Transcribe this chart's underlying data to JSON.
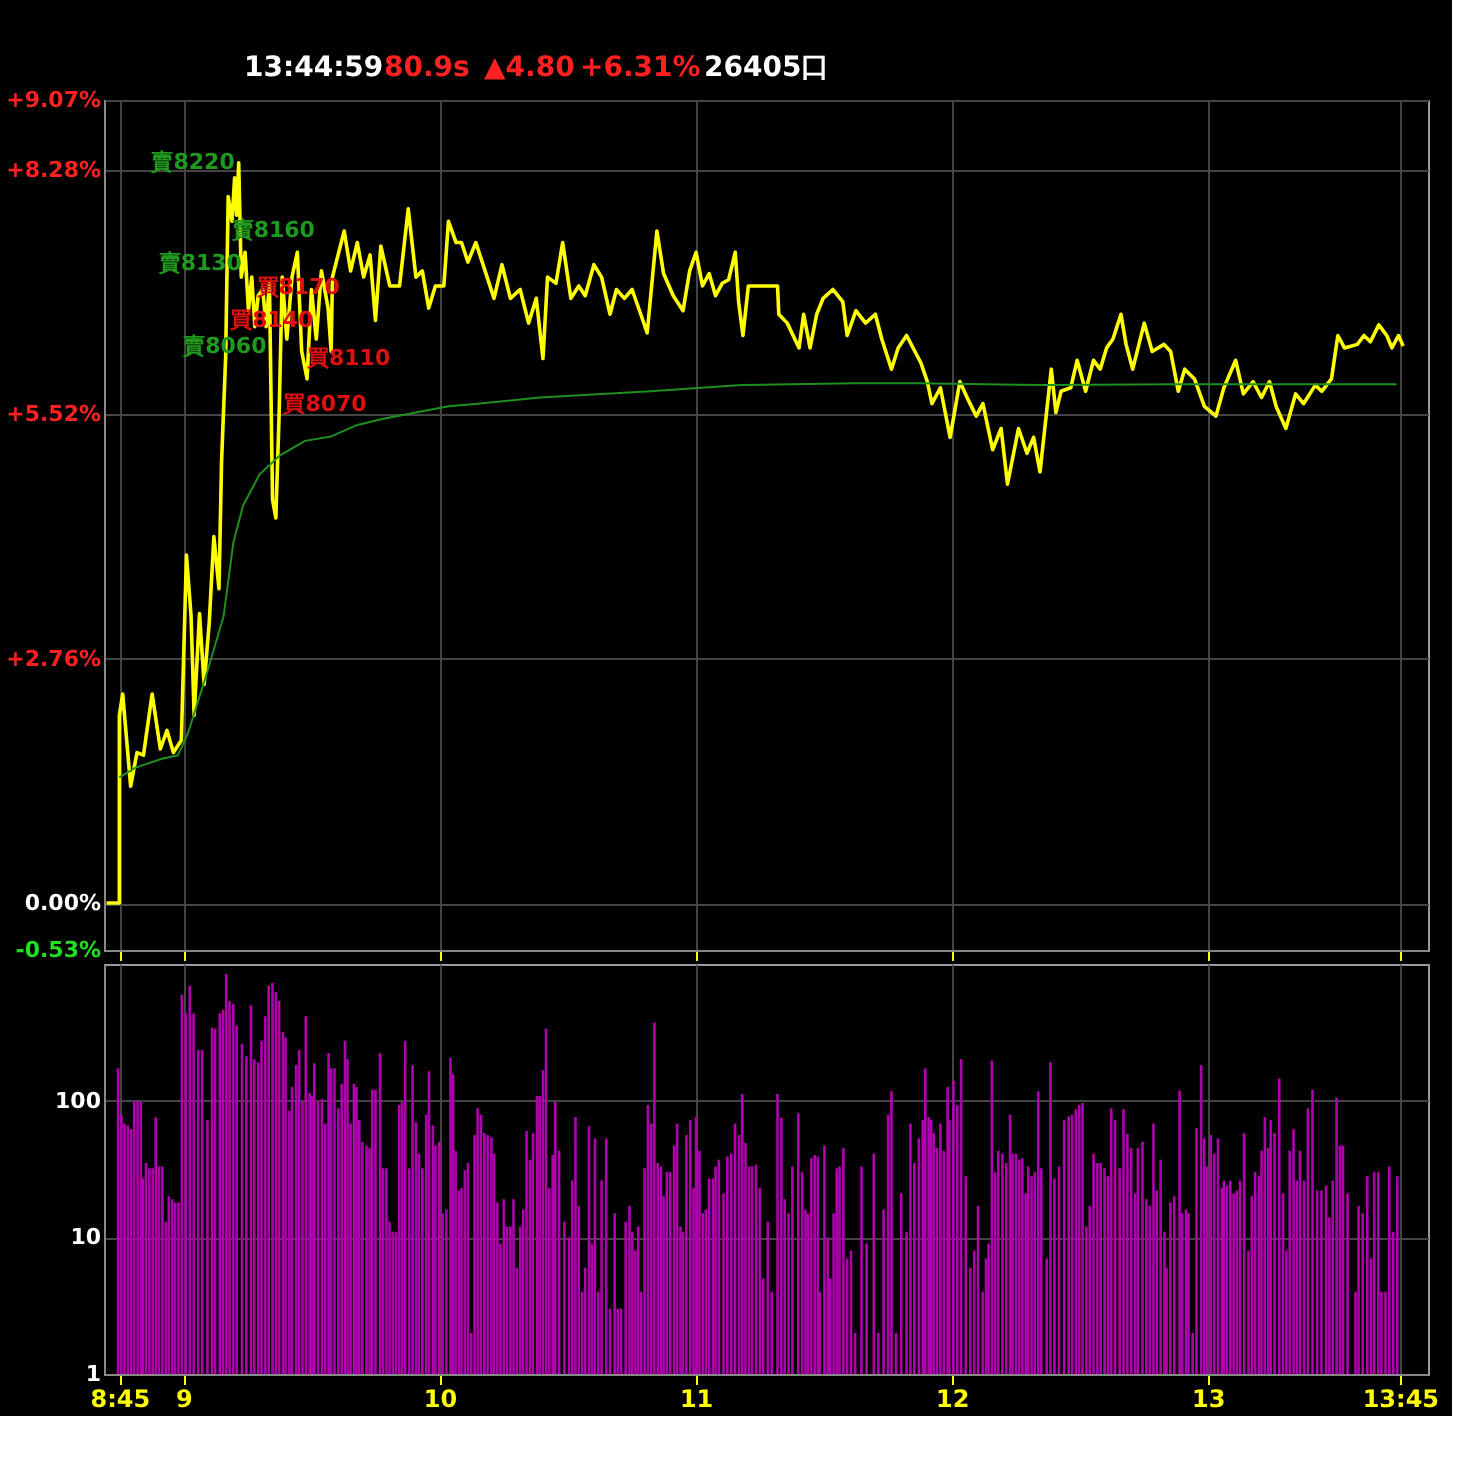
{
  "chart_data": [
    {
      "type": "line",
      "xlim": [
        8.69,
        13.86
      ],
      "xticks": [
        {
          "value": 8.75,
          "label": null
        },
        {
          "value": 9,
          "label": null
        },
        {
          "value": 10,
          "label": null
        },
        {
          "value": 11,
          "label": null
        },
        {
          "value": 12,
          "label": null
        },
        {
          "value": 13,
          "label": null
        },
        {
          "value": 13.75,
          "label": null
        }
      ],
      "ylim": [
        -0.53,
        9.07
      ],
      "yticks": [
        {
          "value": -0.53,
          "label": "-0.53%"
        },
        {
          "value": 0,
          "label": "0.00%"
        },
        {
          "value": 2.76,
          "label": "+2.76%"
        },
        {
          "value": 5.52,
          "label": "+5.52%"
        },
        {
          "value": 8.28,
          "label": "+8.28%"
        },
        {
          "value": 9.07,
          "label": "+9.07%"
        }
      ],
      "grid": true,
      "tick_labels": "y",
      "annotations": [
        "13:44:59",
        "80.9s",
        "▲4.80",
        "+6.31%",
        "26405口",
        {
          "text": "賣8220",
          "x": 9.216,
          "y": 8.36
        },
        {
          "text": "賣8160",
          "x": 9.173,
          "y": 7.59
        },
        {
          "text": "賣8130",
          "x": 9.244,
          "y": 7.22
        },
        {
          "text": "買8170",
          "x": 9.27,
          "y": 6.95
        },
        {
          "text": "買8140",
          "x": 9.167,
          "y": 6.57
        },
        {
          "text": "賣8060",
          "x": 9.34,
          "y": 6.28
        },
        {
          "text": "買8110",
          "x": 9.467,
          "y": 6.15
        },
        {
          "text": "買8070",
          "x": 9.375,
          "y": 5.63
        }
      ],
      "series": [
        {
          "color": "#ffff00",
          "x": [
            8.7,
            8.75,
            8.75,
            8.763,
            8.794,
            8.819,
            8.844,
            8.878,
            8.91,
            8.936,
            8.961,
            8.992,
            9.012,
            9.03,
            9.042,
            9.063,
            9.081,
            9.101,
            9.119,
            9.139,
            9.149,
            9.165,
            9.175,
            9.19,
            9.2,
            9.208,
            9.216,
            9.226,
            9.241,
            9.254,
            9.267,
            9.279,
            9.292,
            9.31,
            9.323,
            9.336,
            9.348,
            9.361,
            9.374,
            9.386,
            9.404,
            9.424,
            9.445,
            9.462,
            9.483,
            9.5,
            9.519,
            9.539,
            9.565,
            9.577,
            9.582,
            9.628,
            9.653,
            9.679,
            9.704,
            9.729,
            9.75,
            9.771,
            9.806,
            9.844,
            9.878,
            9.908,
            9.933,
            9.958,
            9.984,
            10.017,
            10.035,
            10.065,
            10.086,
            10.111,
            10.142,
            10.213,
            10.244,
            10.277,
            10.315,
            10.348,
            10.378,
            10.404,
            10.422,
            10.455,
            10.481,
            10.513,
            10.544,
            10.569,
            10.603,
            10.633,
            10.666,
            10.691,
            10.722,
            10.752,
            10.786,
            10.811,
            10.849,
            10.875,
            10.913,
            10.951,
            10.977,
            11.002,
            11.027,
            11.053,
            11.078,
            11.104,
            11.129,
            11.155,
            11.168,
            11.185,
            11.206,
            11.32,
            11.325,
            11.358,
            11.404,
            11.422,
            11.447,
            11.473,
            11.498,
            11.536,
            11.575,
            11.592,
            11.626,
            11.664,
            11.702,
            11.727,
            11.765,
            11.791,
            11.824,
            11.88,
            11.905,
            11.923,
            11.956,
            11.994,
            12.032,
            12.065,
            12.096,
            12.122,
            12.16,
            12.193,
            12.218,
            12.261,
            12.294,
            12.32,
            12.345,
            12.389,
            12.407,
            12.427,
            12.465,
            12.49,
            12.523,
            12.554,
            12.58,
            12.605,
            12.63,
            12.661,
            12.681,
            12.707,
            12.752,
            12.783,
            12.829,
            12.855,
            12.885,
            12.91,
            12.948,
            12.987,
            13.032,
            13.063,
            13.109,
            13.139,
            13.177,
            13.21,
            13.241,
            13.267,
            13.305,
            13.343,
            13.374,
            13.42,
            13.445,
            13.483,
            13.508,
            13.534,
            13.584,
            13.61,
            13.635,
            13.668,
            13.699,
            13.719,
            13.745,
            13.763
          ],
          "values": [
            0,
            0,
            2.12,
            2.36,
            1.32,
            1.7,
            1.67,
            2.36,
            1.74,
            1.95,
            1.7,
            1.84,
            3.93,
            3.24,
            2.12,
            3.27,
            2.47,
            3.17,
            4.14,
            3.55,
            4.98,
            6.16,
            7.98,
            7.7,
            8.19,
            7.77,
            8.36,
            7.07,
            7.35,
            6.69,
            7.07,
            6.51,
            6.86,
            6.93,
            6.51,
            7.0,
            4.56,
            4.35,
            5.54,
            7.07,
            6.37,
            7.07,
            7.35,
            6.23,
            5.92,
            6.93,
            6.37,
            7.14,
            6.72,
            6.23,
            7.07,
            7.59,
            7.14,
            7.46,
            7.07,
            7.32,
            6.58,
            7.42,
            6.97,
            6.97,
            7.84,
            7.07,
            7.14,
            6.72,
            6.97,
            6.97,
            7.7,
            7.46,
            7.46,
            7.24,
            7.46,
            6.83,
            7.21,
            6.83,
            6.93,
            6.55,
            6.83,
            6.15,
            7.07,
            7.0,
            7.46,
            6.83,
            6.97,
            6.86,
            7.21,
            7.07,
            6.65,
            6.93,
            6.83,
            6.93,
            6.65,
            6.44,
            7.59,
            7.11,
            6.86,
            6.69,
            7.14,
            7.35,
            6.97,
            7.11,
            6.86,
            7.0,
            7.04,
            7.35,
            6.79,
            6.41,
            6.97,
            6.97,
            6.65,
            6.55,
            6.27,
            6.65,
            6.27,
            6.65,
            6.83,
            6.93,
            6.79,
            6.41,
            6.69,
            6.55,
            6.65,
            6.37,
            6.03,
            6.27,
            6.41,
            6.1,
            5.89,
            5.64,
            5.82,
            5.26,
            5.89,
            5.68,
            5.5,
            5.64,
            5.12,
            5.36,
            4.73,
            5.36,
            5.08,
            5.26,
            4.87,
            6.03,
            5.54,
            5.78,
            5.82,
            6.13,
            5.78,
            6.13,
            6.03,
            6.27,
            6.37,
            6.65,
            6.31,
            6.03,
            6.55,
            6.23,
            6.31,
            6.23,
            5.78,
            6.03,
            5.92,
            5.61,
            5.5,
            5.82,
            6.13,
            5.75,
            5.89,
            5.71,
            5.89,
            5.61,
            5.36,
            5.75,
            5.64,
            5.85,
            5.78,
            5.92,
            6.41,
            6.27,
            6.31,
            6.41,
            6.34,
            6.53,
            6.41,
            6.27,
            6.41,
            6.29
          ]
        },
        {
          "color": "#1f8f1f",
          "x": [
            8.75,
            8.813,
            8.916,
            8.979,
            9.017,
            9.093,
            9.157,
            9.195,
            9.233,
            9.297,
            9.374,
            9.475,
            9.577,
            9.679,
            9.781,
            9.908,
            10.035,
            10.149,
            10.391,
            10.824,
            11.18,
            11.613,
            11.867,
            12.376,
            12.885,
            13.737
          ],
          "values": [
            1.42,
            1.53,
            1.63,
            1.67,
            1.91,
            2.61,
            3.24,
            4.07,
            4.49,
            4.84,
            5.05,
            5.22,
            5.27,
            5.4,
            5.47,
            5.54,
            5.61,
            5.64,
            5.71,
            5.78,
            5.85,
            5.87,
            5.87,
            5.85,
            5.86,
            5.86
          ]
        }
      ]
    },
    {
      "type": "bar",
      "color": "#b000b0",
      "log": true,
      "grid": true,
      "ylim": [
        1,
        1000
      ],
      "yticks": [
        1,
        10,
        100
      ],
      "xlim": [
        8.69,
        13.86
      ],
      "xticks": [
        {
          "value": 8.75,
          "label": "8:45"
        },
        {
          "value": 9,
          "label": "9"
        },
        {
          "value": 10,
          "label": "10"
        },
        {
          "value": 11,
          "label": "11"
        },
        {
          "value": 12,
          "label": "12"
        },
        {
          "value": 13,
          "label": "13"
        },
        {
          "value": 13.75,
          "label": "13:45"
        }
      ],
      "x": [
        8.745,
        8.758,
        8.77,
        8.783,
        8.796,
        8.808,
        8.821,
        8.834,
        8.842,
        8.854,
        8.867,
        8.88,
        8.892,
        8.905,
        8.918,
        8.931,
        8.943,
        8.956,
        8.968,
        8.981,
        8.994,
        9.009,
        9.025,
        9.04,
        9.058,
        9.073,
        9.094,
        9.112,
        9.124,
        9.142,
        9.155,
        9.167,
        9.18,
        9.195,
        9.208,
        9.229,
        9.246,
        9.264,
        9.277,
        9.292,
        9.305,
        9.32,
        9.333,
        9.348,
        9.361,
        9.374,
        9.389,
        9.399,
        9.414,
        9.424,
        9.44,
        9.452,
        9.465,
        9.478,
        9.493,
        9.501,
        9.511,
        9.526,
        9.541,
        9.554,
        9.567,
        9.577,
        9.59,
        9.605,
        9.618,
        9.631,
        9.641,
        9.653,
        9.666,
        9.676,
        9.687,
        9.699,
        9.715,
        9.727,
        9.737,
        9.75,
        9.768,
        9.78,
        9.793,
        9.805,
        9.818,
        9.83,
        9.843,
        9.854,
        9.866,
        9.882,
        9.895,
        9.908,
        9.92,
        9.933,
        9.948,
        9.959,
        9.974,
        9.984,
        9.999,
        10.012,
        10.027,
        10.043,
        10.053,
        10.063,
        10.076,
        10.086,
        10.099,
        10.111,
        10.124,
        10.137,
        10.149,
        10.162,
        10.175,
        10.188,
        10.203,
        10.213,
        10.226,
        10.238,
        10.251,
        10.264,
        10.277,
        10.289,
        10.302,
        10.315,
        10.327,
        10.34,
        10.353,
        10.365,
        10.381,
        10.391,
        10.404,
        10.416,
        10.429,
        10.442,
        10.452,
        10.467,
        10.488,
        10.506,
        10.518,
        10.531,
        10.544,
        10.557,
        10.569,
        10.584,
        10.595,
        10.607,
        10.62,
        10.633,
        10.651,
        10.666,
        10.684,
        10.696,
        10.709,
        10.727,
        10.742,
        10.753,
        10.765,
        10.776,
        10.788,
        10.801,
        10.814,
        10.827,
        10.839,
        10.852,
        10.865,
        10.875,
        10.888,
        10.901,
        10.916,
        10.928,
        10.941,
        10.951,
        10.964,
        10.979,
        10.992,
        11.002,
        11.015,
        11.028,
        11.04,
        11.053,
        11.068,
        11.078,
        11.091,
        11.109,
        11.124,
        11.139,
        11.154,
        11.17,
        11.182,
        11.195,
        11.208,
        11.22,
        11.236,
        11.251,
        11.264,
        11.282,
        11.297,
        11.32,
        11.335,
        11.348,
        11.363,
        11.378,
        11.401,
        11.416,
        11.429,
        11.439,
        11.452,
        11.465,
        11.477,
        11.485,
        11.503,
        11.516,
        11.526,
        11.539,
        11.551,
        11.562,
        11.577,
        11.592,
        11.607,
        11.623,
        11.648,
        11.668,
        11.696,
        11.714,
        11.734,
        11.752,
        11.765,
        11.783,
        11.803,
        11.824,
        11.839,
        11.854,
        11.872,
        11.887,
        11.897,
        11.91,
        11.92,
        11.93,
        11.943,
        11.956,
        11.969,
        11.984,
        11.991,
        12.007,
        12.022,
        12.037,
        12.055,
        12.073,
        12.088,
        12.103,
        12.121,
        12.134,
        12.144,
        12.157,
        12.17,
        12.182,
        12.198,
        12.213,
        12.228,
        12.238,
        12.251,
        12.264,
        12.276,
        12.289,
        12.299,
        12.312,
        12.325,
        12.338,
        12.35,
        12.371,
        12.386,
        12.401,
        12.419,
        12.439,
        12.457,
        12.47,
        12.485,
        12.498,
        12.511,
        12.526,
        12.539,
        12.554,
        12.569,
        12.582,
        12.597,
        12.61,
        12.623,
        12.638,
        12.656,
        12.671,
        12.686,
        12.701,
        12.717,
        12.727,
        12.745,
        12.76,
        12.773,
        12.788,
        12.801,
        12.816,
        12.831,
        12.839,
        12.854,
        12.869,
        12.89,
        12.9,
        12.915,
        12.925,
        12.941,
        12.956,
        12.974,
        12.986,
        12.997,
        13.012,
        13.025,
        13.04,
        13.055,
        13.063,
        13.075,
        13.088,
        13.101,
        13.114,
        13.126,
        13.142,
        13.159,
        13.172,
        13.185,
        13.2,
        13.21,
        13.223,
        13.236,
        13.246,
        13.261,
        13.279,
        13.294,
        13.307,
        13.32,
        13.335,
        13.348,
        13.36,
        13.376,
        13.391,
        13.409,
        13.427,
        13.444,
        13.462,
        13.475,
        13.488,
        13.503,
        13.516,
        13.528,
        13.546,
        13.577,
        13.589,
        13.605,
        13.623,
        13.638,
        13.65,
        13.666,
        13.678,
        13.694,
        13.709,
        13.724,
        13.74
      ],
      "values": [
        173,
        79,
        68,
        66,
        62,
        98,
        100,
        98,
        27,
        35,
        32,
        32,
        76,
        33,
        33,
        13,
        20,
        19,
        18,
        18,
        595,
        437,
        695,
        437,
        235,
        235,
        72,
        343,
        336,
        437,
        460,
        850,
        535,
        510,
        355,
        260,
        211,
        500,
        201,
        191,
        274,
        415,
        695,
        730,
        625,
        535,
        319,
        290,
        84,
        126,
        182,
        235,
        98,
        415,
        114,
        108,
        188,
        98,
        103,
        68,
        223,
        173,
        173,
        88,
        133,
        274,
        201,
        68,
        133,
        126,
        72,
        50,
        47,
        45,
        120,
        120,
        223,
        32,
        32,
        13,
        11,
        11,
        93,
        98,
        274,
        32,
        182,
        70,
        41,
        32,
        79,
        164,
        66,
        47,
        50,
        15,
        16,
        206,
        156,
        43,
        22,
        23,
        31,
        35,
        2,
        56,
        88,
        79,
        58,
        56,
        54,
        41,
        18,
        9,
        19,
        12,
        12,
        19,
        6,
        12,
        16,
        60,
        37,
        58,
        108,
        108,
        167,
        336,
        23,
        40,
        98,
        43,
        13,
        10,
        26,
        76,
        17,
        4,
        6,
        65,
        9,
        53,
        4,
        26,
        53,
        3,
        15,
        3,
        3,
        13,
        17,
        11,
        8,
        12,
        4,
        32,
        93,
        68,
        373,
        35,
        33,
        20,
        30,
        30,
        47,
        68,
        12,
        11,
        56,
        72,
        23,
        76,
        43,
        15,
        16,
        27,
        27,
        33,
        37,
        21,
        39,
        41,
        68,
        56,
        112,
        49,
        33,
        33,
        34,
        23,
        5,
        13,
        4,
        112,
        75,
        19,
        15,
        33,
        81,
        30,
        16,
        15,
        38,
        40,
        39,
        4,
        47,
        10,
        5,
        15,
        32,
        33,
        45,
        7,
        8,
        2,
        33,
        9,
        41,
        2,
        16,
        79,
        117,
        2,
        21,
        11,
        68,
        35,
        53,
        72,
        173,
        76,
        72,
        58,
        45,
        68,
        43,
        126,
        72,
        140,
        93,
        201,
        28,
        6,
        8,
        17,
        4,
        7,
        9,
        197,
        30,
        43,
        41,
        35,
        79,
        41,
        41,
        37,
        38,
        21,
        33,
        28,
        30,
        117,
        32,
        7,
        191,
        27,
        33,
        72,
        77,
        79,
        86,
        93,
        96,
        12,
        17,
        41,
        35,
        35,
        32,
        28,
        88,
        72,
        32,
        87,
        57,
        45,
        21,
        45,
        50,
        19,
        17,
        68,
        22,
        37,
        11,
        6,
        18,
        20,
        118,
        15,
        16,
        15,
        2,
        63,
        182,
        53,
        33,
        56,
        41,
        53,
        23,
        26,
        24,
        26,
        21,
        22,
        26,
        58,
        8,
        20,
        30,
        28,
        43,
        76,
        45,
        72,
        58,
        145,
        21,
        8,
        43,
        62,
        26,
        43,
        26,
        88,
        120,
        22,
        22,
        24,
        14,
        26,
        105,
        47,
        47,
        21,
        4,
        17,
        15,
        28,
        7,
        30,
        30,
        4,
        4,
        33,
        11,
        28
      ]
    }
  ]
}
